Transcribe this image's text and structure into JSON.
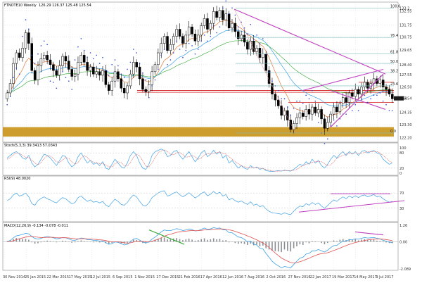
{
  "app": {
    "symbol_label": "FTNOTE10 Weekly",
    "ohlc": "126.29 126.37 125.48 125.54"
  },
  "colors": {
    "background": "#ffffff",
    "candle_up": "#ffffff",
    "candle_down": "#000000",
    "grid": "#cfd6de",
    "magenta": "#c040c0",
    "red_band": "#d01818",
    "gold_band": "#c89416",
    "blue_line": "#3ba0e6",
    "orange_line": "#e07a3a",
    "green_line": "#2aa52a",
    "fib_line": "#7fbcbc"
  },
  "price_axis": {
    "labels": [
      "133.2",
      "132.95",
      "131.75",
      "130.75",
      "129.65",
      "128.40",
      "127.55",
      "126.50",
      "125.54",
      "124.35",
      "123.30",
      "122.20"
    ],
    "current_price": "125.54"
  },
  "fib_labels": [
    "100.0",
    "76.4",
    "61.8",
    "50.0",
    "38.2",
    "23.6",
    "0.0"
  ],
  "date_axis": [
    "30 Nov 2014",
    "25 Jan 2015",
    "22 Mar 2015",
    "17 May 2015",
    "12 Jul 2015",
    "6 Sep 2015",
    "1 Nov 2015",
    "27 Dec 2015",
    "21 Feb 2016",
    "17 Apr 2016",
    "12 Jun 2016",
    "7 Aug 2016",
    "2 Oct 2016",
    "27 Nov 2016",
    "22 Jan 2017",
    "19 Mar 2017",
    "14 May 2017",
    "9 Jul 2017"
  ],
  "panels": {
    "stoch": {
      "label": "Stoch(5,3,3) 39.3413 57.0343",
      "axis": [
        "100",
        "80",
        "20",
        "0"
      ]
    },
    "rsi": {
      "label": "RSI(9) 48.0020",
      "axis": [
        "70",
        "30"
      ]
    },
    "macd": {
      "label": "MACD(12,26,9) -0.134 -0.078 -0.011",
      "axis": [
        "1.26",
        "0.00",
        "-2.089"
      ]
    }
  },
  "chart_data": [
    {
      "type": "candlestick",
      "title": "FTNOTE10 Weekly",
      "x_start": "30 Nov 2014",
      "x_end": "9 Jul 2017",
      "ylim": [
        122.0,
        133.4
      ],
      "closes": [
        126.0,
        126.8,
        128.5,
        129.4,
        129.0,
        129.8,
        131.1,
        130.2,
        127.9,
        127.1,
        128.3,
        128.9,
        129.2,
        128.8,
        128.4,
        127.9,
        127.5,
        128.3,
        129.1,
        128.7,
        128.0,
        127.4,
        127.6,
        128.6,
        129.2,
        128.6,
        127.9,
        128.2,
        127.6,
        127.8,
        127.5,
        127.9,
        126.7,
        126.2,
        127.0,
        127.8,
        127.2,
        126.4,
        126.0,
        126.6,
        127.6,
        128.6,
        128.2,
        127.2,
        126.3,
        126.1,
        126.7,
        127.8,
        128.4,
        129.4,
        130.2,
        130.8,
        129.6,
        130.1,
        130.8,
        131.4,
        130.8,
        130.2,
        130.9,
        131.6,
        131.0,
        130.4,
        130.9,
        131.7,
        132.3,
        131.4,
        131.9,
        132.9,
        132.4,
        133.0,
        132.2,
        132.7,
        131.5,
        131.9,
        131.2,
        130.6,
        130.9,
        130.3,
        129.7,
        130.4,
        129.5,
        129.8,
        129.0,
        129.3,
        127.9,
        126.8,
        125.9,
        125.4,
        124.9,
        124.1,
        124.5,
        123.7,
        122.9,
        123.4,
        123.9,
        124.3,
        124.0,
        124.6,
        124.2,
        124.8,
        124.3,
        124.6,
        123.8,
        123.0,
        123.5,
        124.2,
        124.8,
        124.4,
        125.1,
        125.6,
        125.2,
        126.0,
        125.7,
        126.3,
        125.9,
        126.5,
        126.9,
        126.4,
        126.8,
        127.2,
        126.8,
        127.1,
        126.5,
        126.3,
        125.9,
        125.5
      ],
      "indicators": {
        "ema_fast_color": "#e07a3a",
        "ema_mid_color": "#3ba0e6",
        "ema_slow_color": "#2aa52a"
      }
    },
    {
      "type": "line",
      "title": "Stoch(5,3,3)",
      "ylim": [
        0,
        100
      ],
      "series": [
        {
          "name": "%K",
          "values": [
            60,
            70,
            80,
            85,
            75,
            60,
            55,
            70,
            40,
            25,
            35,
            55,
            75,
            70,
            60,
            45,
            30,
            50,
            70,
            65,
            40,
            25,
            35,
            65,
            80,
            60,
            40,
            50,
            35,
            40,
            30,
            45,
            20,
            15,
            35,
            55,
            40,
            25,
            20,
            40,
            70,
            85,
            70,
            40,
            20,
            15,
            35,
            70,
            85,
            90,
            95,
            90,
            65,
            70,
            85,
            90,
            70,
            55,
            70,
            85,
            65,
            45,
            60,
            80,
            90,
            65,
            75,
            90,
            75,
            85,
            60,
            70,
            40,
            50,
            35,
            20,
            30,
            20,
            15,
            30,
            20,
            25,
            15,
            20,
            10,
            8,
            7,
            8,
            10,
            8,
            12,
            10,
            8,
            15,
            25,
            35,
            30,
            45,
            35,
            55,
            40,
            50,
            30,
            20,
            35,
            55,
            70,
            60,
            75,
            85,
            70,
            85,
            75,
            85,
            70,
            85,
            90,
            80,
            85,
            90,
            80,
            75,
            55,
            45,
            35,
            40
          ]
        },
        {
          "name": "%D",
          "values": [
            55,
            62,
            72,
            80,
            78,
            70,
            63,
            62,
            52,
            40,
            33,
            42,
            58,
            68,
            68,
            58,
            45,
            42,
            52,
            62,
            58,
            45,
            35,
            42,
            58,
            70,
            62,
            50,
            43,
            42,
            37,
            38,
            32,
            25,
            25,
            37,
            45,
            42,
            30,
            28,
            42,
            63,
            75,
            68,
            48,
            28,
            25,
            40,
            62,
            80,
            88,
            92,
            85,
            75,
            73,
            80,
            82,
            73,
            63,
            65,
            70,
            65,
            55,
            60,
            72,
            78,
            75,
            78,
            82,
            83,
            78,
            75,
            65,
            55,
            45,
            37,
            30,
            25,
            22,
            22,
            22,
            22,
            20,
            18,
            15,
            12,
            9,
            8,
            8,
            9,
            10,
            10,
            10,
            11,
            15,
            23,
            30,
            35,
            38,
            43,
            45,
            47,
            45,
            38,
            30,
            33,
            45,
            58,
            65,
            70,
            75,
            78,
            77,
            80,
            77,
            78,
            82,
            85,
            85,
            85,
            85,
            80,
            70,
            60,
            48,
            42
          ]
        }
      ]
    },
    {
      "type": "line",
      "title": "RSI(9)",
      "ylim": [
        0,
        100
      ],
      "series": [
        {
          "name": "RSI",
          "values": [
            50,
            55,
            65,
            70,
            62,
            65,
            70,
            60,
            42,
            38,
            50,
            56,
            60,
            55,
            52,
            47,
            44,
            52,
            58,
            55,
            48,
            42,
            45,
            58,
            62,
            55,
            48,
            52,
            46,
            48,
            44,
            48,
            38,
            34,
            45,
            54,
            48,
            40,
            38,
            45,
            57,
            65,
            60,
            48,
            38,
            36,
            44,
            58,
            64,
            70,
            74,
            76,
            62,
            65,
            70,
            73,
            66,
            60,
            65,
            71,
            64,
            57,
            62,
            69,
            73,
            63,
            67,
            74,
            68,
            72,
            62,
            66,
            52,
            56,
            50,
            46,
            49,
            44,
            40,
            47,
            38,
            41,
            34,
            37,
            28,
            22,
            18,
            17,
            16,
            14,
            18,
            15,
            13,
            22,
            30,
            36,
            34,
            42,
            38,
            45,
            40,
            44,
            36,
            30,
            37,
            45,
            52,
            48,
            55,
            60,
            55,
            62,
            58,
            63,
            58,
            63,
            65,
            60,
            63,
            66,
            60,
            62,
            55,
            50,
            46,
            48
          ]
        }
      ]
    },
    {
      "type": "bar",
      "title": "MACD(12,26,9)",
      "ylim": [
        -2.089,
        1.26
      ],
      "series": [
        {
          "name": "Histogram",
          "values": [
            0.05,
            0.1,
            0.2,
            0.28,
            0.25,
            0.2,
            0.22,
            0.15,
            -0.05,
            -0.15,
            -0.12,
            -0.05,
            0.05,
            0.08,
            0.05,
            0.0,
            -0.05,
            0.02,
            0.08,
            0.06,
            -0.02,
            -0.08,
            -0.05,
            0.05,
            0.1,
            0.05,
            -0.02,
            0.0,
            -0.05,
            -0.04,
            -0.06,
            -0.03,
            -0.12,
            -0.18,
            -0.1,
            0.0,
            -0.05,
            -0.12,
            -0.15,
            -0.08,
            0.05,
            0.15,
            0.12,
            0.0,
            -0.1,
            -0.14,
            -0.06,
            0.08,
            0.16,
            0.24,
            0.3,
            0.32,
            0.18,
            0.2,
            0.25,
            0.28,
            0.2,
            0.12,
            0.18,
            0.24,
            0.16,
            0.08,
            0.12,
            0.2,
            0.26,
            0.14,
            0.18,
            0.26,
            0.18,
            0.22,
            0.1,
            0.12,
            -0.05,
            -0.02,
            -0.1,
            -0.16,
            -0.12,
            -0.18,
            -0.25,
            -0.15,
            -0.28,
            -0.22,
            -0.35,
            -0.3,
            -0.5,
            -0.6,
            -0.7,
            -0.72,
            -0.75,
            -0.8,
            -0.6,
            -0.7,
            -0.75,
            -0.5,
            -0.35,
            -0.2,
            -0.25,
            -0.05,
            -0.12,
            0.05,
            -0.04,
            0.02,
            -0.1,
            -0.2,
            -0.1,
            0.02,
            0.1,
            0.05,
            0.15,
            0.2,
            0.12,
            0.2,
            0.14,
            0.2,
            0.1,
            0.16,
            0.2,
            0.12,
            0.14,
            0.16,
            0.08,
            0.06,
            -0.04,
            -0.06,
            -0.1,
            -0.11
          ]
        },
        {
          "name": "MACD",
          "values": [
            0.0,
            0.1,
            0.3,
            0.45,
            0.5,
            0.55,
            0.65,
            0.6,
            0.4,
            0.25,
            0.2,
            0.25,
            0.35,
            0.38,
            0.36,
            0.3,
            0.22,
            0.25,
            0.32,
            0.3,
            0.22,
            0.12,
            0.1,
            0.2,
            0.28,
            0.25,
            0.16,
            0.16,
            0.1,
            0.1,
            0.05,
            0.06,
            -0.08,
            -0.2,
            -0.15,
            -0.02,
            -0.05,
            -0.15,
            -0.25,
            -0.2,
            -0.02,
            0.2,
            0.25,
            0.12,
            -0.02,
            -0.1,
            -0.02,
            0.2,
            0.35,
            0.55,
            0.75,
            0.9,
            0.85,
            0.85,
            0.92,
            1.0,
            0.95,
            0.85,
            0.9,
            0.98,
            0.92,
            0.82,
            0.85,
            0.95,
            1.05,
            0.95,
            0.98,
            1.08,
            1.02,
            1.05,
            0.92,
            0.9,
            0.7,
            0.68,
            0.52,
            0.36,
            0.32,
            0.18,
            0.0,
            0.05,
            -0.2,
            -0.25,
            -0.5,
            -0.55,
            -0.9,
            -1.2,
            -1.5,
            -1.7,
            -1.85,
            -2.0,
            -1.9,
            -1.95,
            -2.0,
            -1.75,
            -1.5,
            -1.25,
            -1.2,
            -0.95,
            -0.9,
            -0.7,
            -0.7,
            -0.6,
            -0.7,
            -0.8,
            -0.65,
            -0.45,
            -0.3,
            -0.28,
            -0.1,
            0.05,
            0.05,
            0.15,
            0.15,
            0.22,
            0.2,
            0.26,
            0.32,
            0.28,
            0.3,
            0.32,
            0.26,
            0.22,
            0.1,
            0.05,
            -0.02,
            -0.08
          ]
        }
      ]
    }
  ]
}
